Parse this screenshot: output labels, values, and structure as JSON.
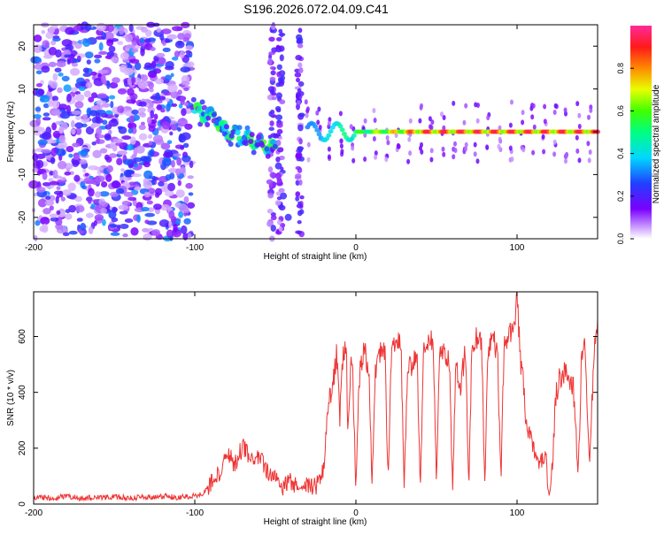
{
  "page_title": "S196.2026.072.04.09.C41",
  "chart_data": [
    {
      "type": "heatmap",
      "title": "S196.2026.072.04.09.C41",
      "xlabel": "Height of straight line (km)",
      "ylabel": "Frequency (Hz)",
      "xlim": [
        -200,
        150
      ],
      "ylim": [
        -25,
        25
      ],
      "x_ticks": [
        -200,
        -100,
        0,
        100
      ],
      "x_tick_labels": [
        "-200",
        "-100",
        "0",
        "100"
      ],
      "y_ticks": [
        -20,
        -10,
        0,
        10,
        20
      ],
      "y_tick_labels": [
        "-20",
        "-10",
        "0",
        "10",
        "20"
      ],
      "colorbar": {
        "label": "Normalized spectral amplitude",
        "range": [
          0,
          1
        ],
        "ticks": [
          0.0,
          0.2,
          0.4,
          0.6,
          0.8
        ],
        "tick_labels": [
          "0.0",
          "0.2",
          "0.4",
          "0.6",
          "0.8"
        ],
        "colormap": "rainbow (violet-blue-cyan-green-yellow-red-magenta)"
      },
      "regions": [
        {
          "name": "scattered noise",
          "x": [
            -200,
            -102
          ],
          "y": [
            -25,
            25
          ],
          "amplitude": [
            0.0,
            0.3
          ]
        },
        {
          "name": "descending trace",
          "x": [
            -100,
            -50
          ],
          "y": [
            3,
            -4
          ],
          "amplitude": [
            0.3,
            0.6
          ]
        },
        {
          "name": "vertical streaks",
          "x": [
            -55,
            -30
          ],
          "y": [
            -25,
            25
          ],
          "amplitude": [
            0.0,
            0.2
          ]
        },
        {
          "name": "steady line",
          "x": [
            -30,
            150
          ],
          "y": [
            0,
            0
          ],
          "amplitude": [
            0.3,
            0.95
          ]
        }
      ]
    },
    {
      "type": "line",
      "title": "",
      "xlabel": "Height of straight line (km)",
      "ylabel": "SNR (10 * v/v)",
      "xlim": [
        -200,
        150
      ],
      "ylim": [
        0,
        760
      ],
      "x_ticks": [
        -200,
        -100,
        0,
        100
      ],
      "x_tick_labels": [
        "-200",
        "-100",
        "0",
        "100"
      ],
      "y_ticks": [
        0,
        200,
        400,
        600
      ],
      "y_tick_labels": [
        "0",
        "200",
        "400",
        "600"
      ],
      "series": [
        {
          "name": "SNR",
          "color": "#ee3333",
          "x": [
            -200,
            -190,
            -180,
            -170,
            -160,
            -150,
            -140,
            -130,
            -120,
            -110,
            -100,
            -95,
            -90,
            -85,
            -80,
            -75,
            -70,
            -65,
            -60,
            -55,
            -50,
            -45,
            -40,
            -35,
            -30,
            -25,
            -20,
            -18,
            -15,
            -12,
            -10,
            -8,
            -6,
            -5,
            -3,
            -2,
            0,
            2,
            3,
            5,
            8,
            10,
            12,
            15,
            18,
            20,
            22,
            25,
            28,
            30,
            32,
            35,
            38,
            40,
            42,
            45,
            48,
            50,
            52,
            55,
            58,
            60,
            62,
            65,
            68,
            70,
            72,
            75,
            78,
            80,
            82,
            85,
            88,
            90,
            92,
            95,
            98,
            100,
            102,
            104,
            106,
            108,
            110,
            112,
            115,
            118,
            120,
            122,
            124,
            126,
            130,
            135,
            138,
            140,
            142,
            145,
            148,
            150
          ],
          "y": [
            25,
            22,
            28,
            20,
            24,
            26,
            22,
            25,
            28,
            24,
            30,
            40,
            70,
            110,
            180,
            140,
            210,
            150,
            170,
            110,
            90,
            60,
            80,
            50,
            70,
            60,
            120,
            330,
            400,
            540,
            300,
            520,
            600,
            220,
            520,
            480,
            60,
            440,
            500,
            560,
            480,
            80,
            480,
            540,
            560,
            70,
            520,
            590,
            560,
            60,
            470,
            500,
            540,
            60,
            540,
            600,
            580,
            70,
            560,
            540,
            520,
            50,
            480,
            420,
            560,
            60,
            560,
            600,
            580,
            60,
            560,
            600,
            520,
            80,
            580,
            600,
            640,
            740,
            520,
            420,
            280,
            240,
            200,
            150,
            160,
            160,
            20,
            140,
            380,
            440,
            480,
            420,
            100,
            520,
            560,
            120,
            580,
            620
          ]
        }
      ]
    }
  ]
}
